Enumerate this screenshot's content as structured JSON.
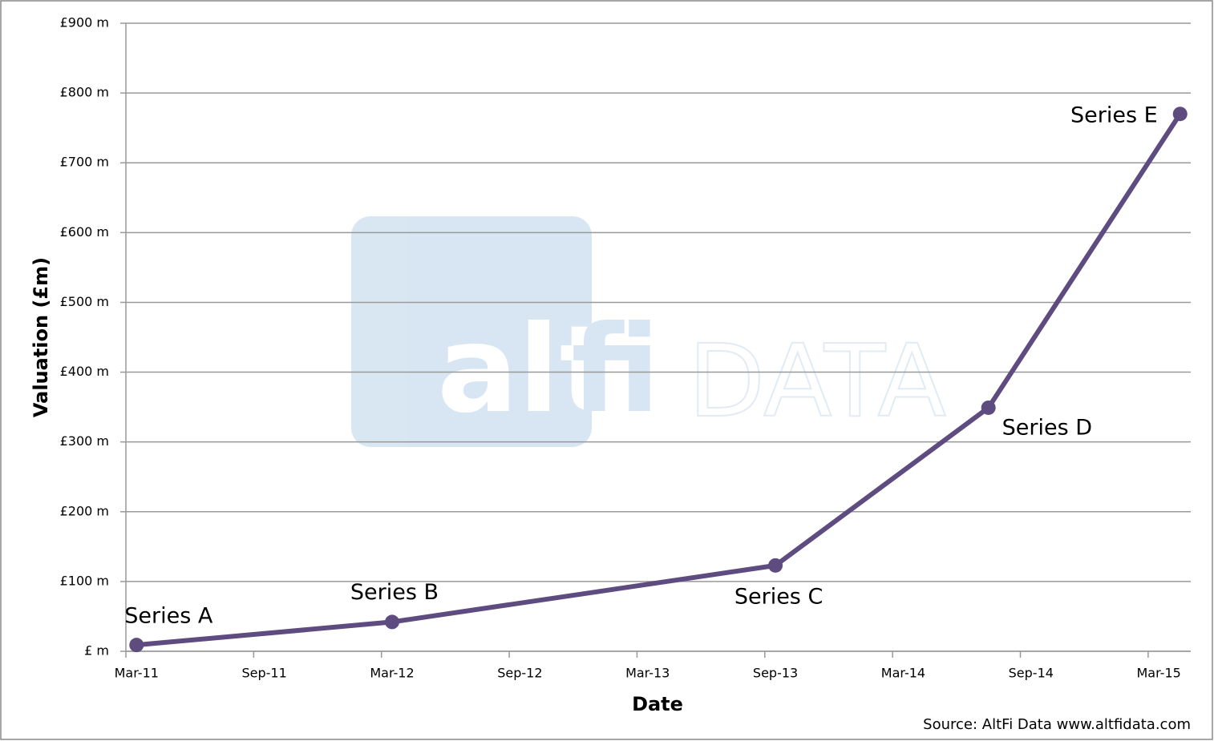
{
  "chart_data": {
    "type": "line",
    "x_label": "Date",
    "y_label": "Valuation (£m)",
    "source": "Source: AltFi Data www.altfidata.com",
    "watermark": [
      "alt",
      "fi",
      "DATA"
    ],
    "x": [
      "Mar-11",
      "Mar-12",
      "Sep-13",
      "Jul-14",
      "Apr-15"
    ],
    "series": [
      {
        "name": "Valuation",
        "color": "#5e4b80",
        "values": [
          9,
          42,
          123,
          349,
          770
        ],
        "point_labels": [
          "Series A",
          "Series B",
          "Series C",
          "Series D",
          "Series E"
        ]
      }
    ],
    "xlim": [
      "Mar-11",
      "Apr-15"
    ],
    "xticks": [
      "Mar-11",
      "Sep-11",
      "Mar-12",
      "Sep-12",
      "Mar-13",
      "Sep-13",
      "Mar-14",
      "Sep-14",
      "Mar-15"
    ],
    "ylim": [
      0,
      900
    ],
    "yticks": [
      {
        "value": 0,
        "label": "£ m"
      },
      {
        "value": 100,
        "label": "£100 m"
      },
      {
        "value": 200,
        "label": "£200 m"
      },
      {
        "value": 300,
        "label": "£300 m"
      },
      {
        "value": 400,
        "label": "£400 m"
      },
      {
        "value": 500,
        "label": "£500 m"
      },
      {
        "value": 600,
        "label": "£600 m"
      },
      {
        "value": 700,
        "label": "£700 m"
      },
      {
        "value": 800,
        "label": "£800 m"
      },
      {
        "value": 900,
        "label": "£900 m"
      }
    ],
    "grid": true
  }
}
